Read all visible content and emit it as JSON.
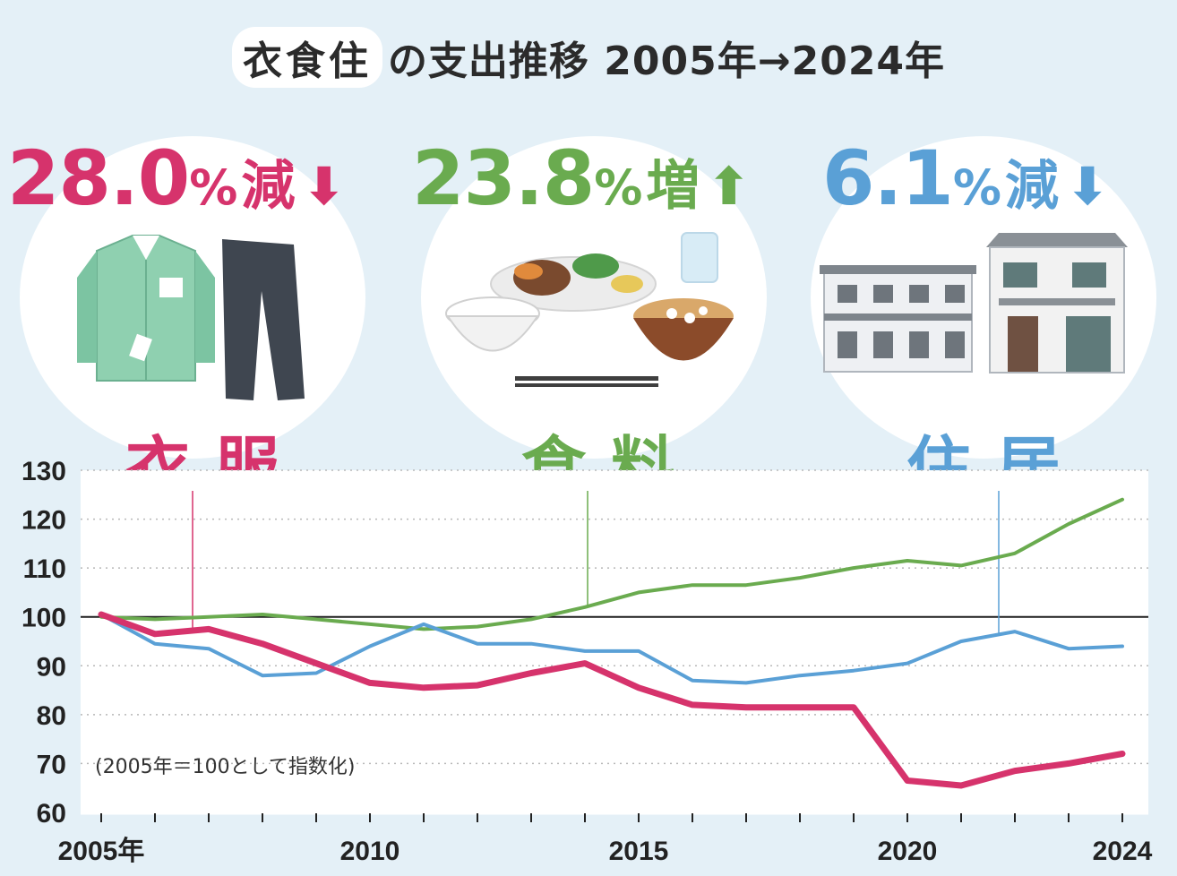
{
  "title": {
    "highlight": "衣食住",
    "rest": "の支出推移 2005年→2024年"
  },
  "panels": [
    {
      "key": "clothing",
      "label": "衣服",
      "change_num": "28.0",
      "change_pct": "%",
      "change_word": "減",
      "arrow": "⬇",
      "color": "#d6336c",
      "icon": "shirt-and-pants-icon"
    },
    {
      "key": "food",
      "label": "食料",
      "change_num": "23.8",
      "change_pct": "%",
      "change_word": "増",
      "arrow": "⬆",
      "color": "#6aab4f",
      "icon": "meal-set-icon"
    },
    {
      "key": "housing",
      "label": "住居",
      "change_num": "6.1",
      "change_pct": "%",
      "change_word": "減",
      "arrow": "⬇",
      "color": "#5aa0d6",
      "icon": "houses-icon"
    }
  ],
  "chart_data": {
    "type": "line",
    "x": [
      2005,
      2006,
      2007,
      2008,
      2009,
      2010,
      2011,
      2012,
      2013,
      2014,
      2015,
      2016,
      2017,
      2018,
      2019,
      2020,
      2021,
      2022,
      2023,
      2024
    ],
    "x_tick_labels": [
      "2005年",
      "2010",
      "2015",
      "2020",
      "2024"
    ],
    "x_tick_values": [
      2005,
      2010,
      2015,
      2020,
      2024
    ],
    "y_ticks": [
      60,
      70,
      80,
      90,
      100,
      110,
      120,
      130
    ],
    "ylim": [
      60,
      130
    ],
    "baseline": 100,
    "note": "(2005年＝100として指数化)",
    "grid": true,
    "series": [
      {
        "name": "衣服",
        "color": "#d6336c",
        "width": 7,
        "values": [
          100.5,
          96.5,
          97.5,
          94.5,
          90.5,
          86.5,
          85.5,
          86,
          88.5,
          90.5,
          85.5,
          82,
          81.5,
          81.5,
          81.5,
          66.5,
          65.5,
          68.5,
          70,
          72
        ]
      },
      {
        "name": "食料",
        "color": "#6aab4f",
        "width": 4,
        "values": [
          100,
          99.5,
          100,
          100.5,
          99.5,
          98.5,
          97.5,
          98,
          99.5,
          102,
          105,
          106.5,
          106.5,
          108,
          110,
          111.5,
          110.5,
          113,
          119,
          124
        ]
      },
      {
        "name": "住居",
        "color": "#5aa0d6",
        "width": 4,
        "values": [
          100.5,
          94.5,
          93.5,
          88,
          88.5,
          94,
          98.5,
          94.5,
          94.5,
          93,
          93,
          87,
          86.5,
          88,
          89,
          90.5,
          95,
          97,
          93.5,
          94
        ]
      }
    ]
  }
}
